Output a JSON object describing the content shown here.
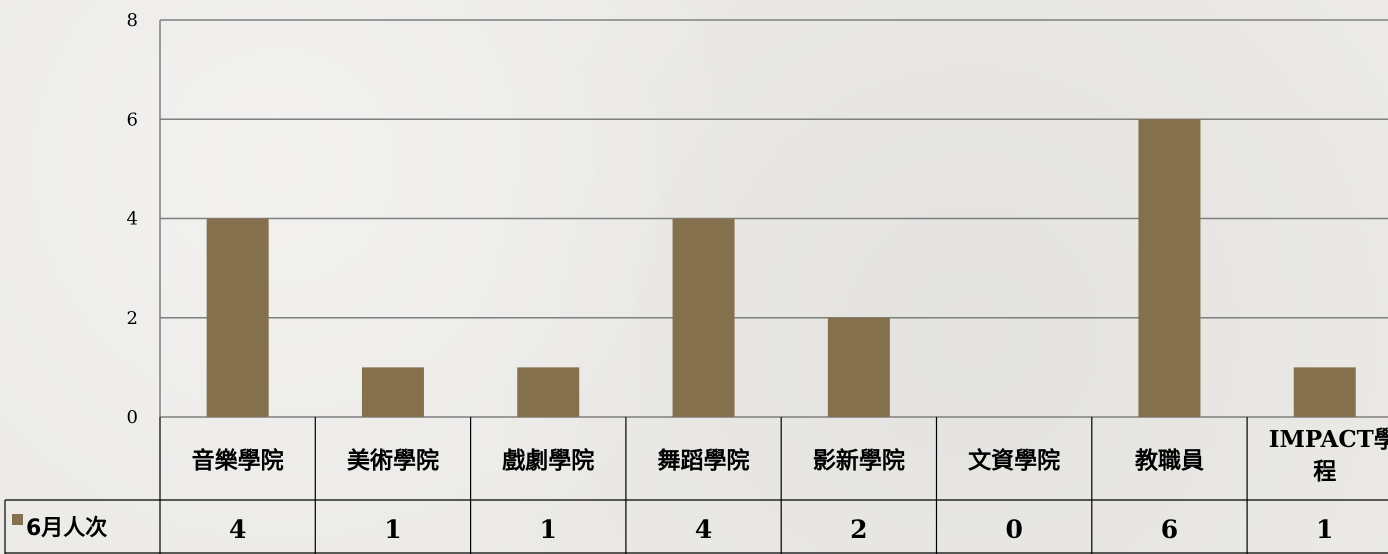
{
  "chart_data": {
    "type": "bar",
    "categories": [
      "音樂學院",
      "美術學院",
      "戲劇學院",
      "舞蹈學院",
      "影新學院",
      "文資學院",
      "教職員",
      "IMPACT學程"
    ],
    "series": [
      {
        "name": "6月人次",
        "values": [
          4,
          1,
          1,
          4,
          2,
          0,
          6,
          1
        ]
      }
    ],
    "ylim": [
      0,
      8
    ],
    "yticks": [
      0,
      2,
      4,
      6,
      8
    ],
    "grid": true,
    "legend": "data-table-left",
    "data_table": true,
    "colors": {
      "bar": "#85704d",
      "grid": "#7f7f7f",
      "table_border": "#000000"
    }
  }
}
